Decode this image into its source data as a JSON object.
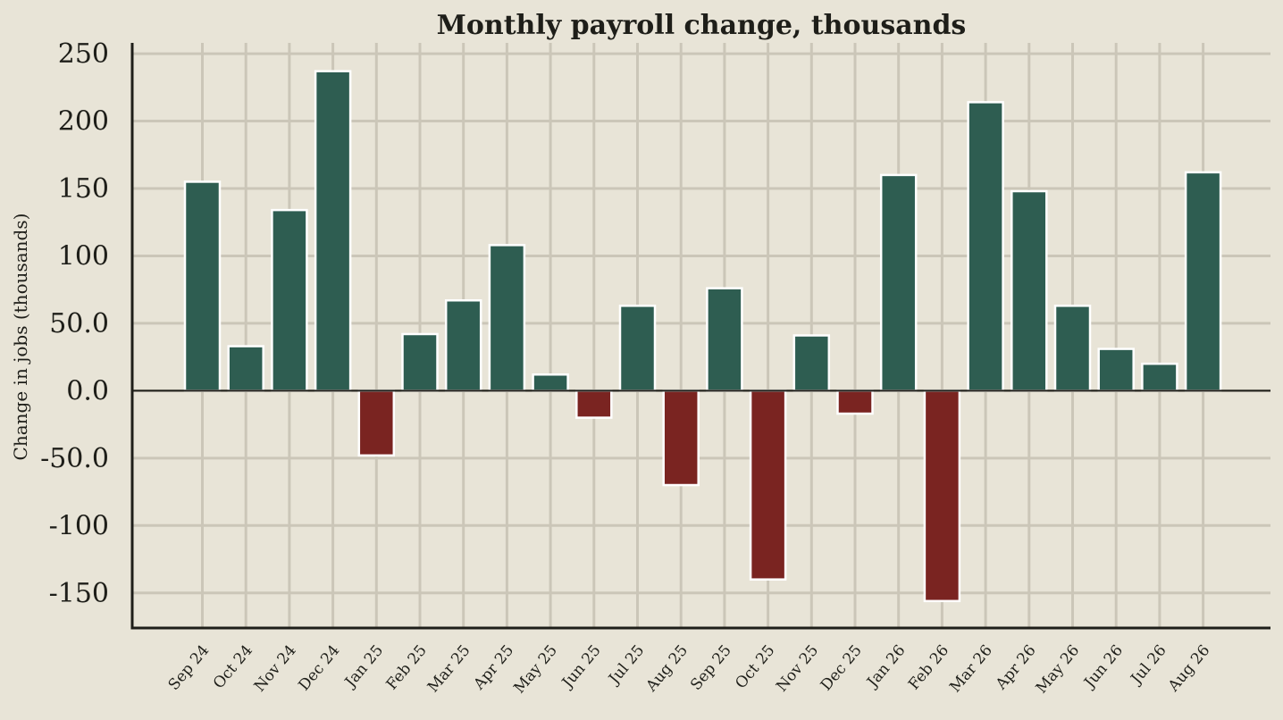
{
  "chart_data": {
    "type": "bar",
    "title": "Monthly payroll change, thousands",
    "xlabel": "",
    "ylabel": "Change in jobs (thousands)",
    "categories": [
      "Sep 24",
      "Oct 24",
      "Nov 24",
      "Dec 24",
      "Jan 25",
      "Feb 25",
      "Mar 25",
      "Apr 25",
      "May 25",
      "Jun 25",
      "Jul 25",
      "Aug 25",
      "Sep 25",
      "Oct 25",
      "Nov 25",
      "Dec 25",
      "Jan 26",
      "Feb 26",
      "Mar 26",
      "Apr 26",
      "May 26",
      "Jun 26",
      "Jul 26",
      "Aug 26"
    ],
    "values": [
      155,
      33,
      134,
      237,
      -48,
      42,
      67,
      108,
      12,
      -20,
      63,
      -70,
      76,
      -140,
      41,
      -17,
      160,
      -156,
      214,
      148,
      63,
      31,
      20,
      162
    ],
    "ylim": [
      -176,
      258
    ],
    "yticks": [
      250,
      200,
      150,
      100,
      50,
      0,
      -50,
      -100,
      -150
    ],
    "ytick_labels": [
      "250",
      "200",
      "150",
      "100",
      "50.0",
      "0.0",
      "-50.0",
      "-100",
      "-150"
    ],
    "grid": true,
    "colors": {
      "positive": "#2e5d51",
      "negative": "#7a2421",
      "background": "#e8e4d7",
      "grid": "#cbc6b8",
      "axis": "#1e1e19"
    }
  }
}
